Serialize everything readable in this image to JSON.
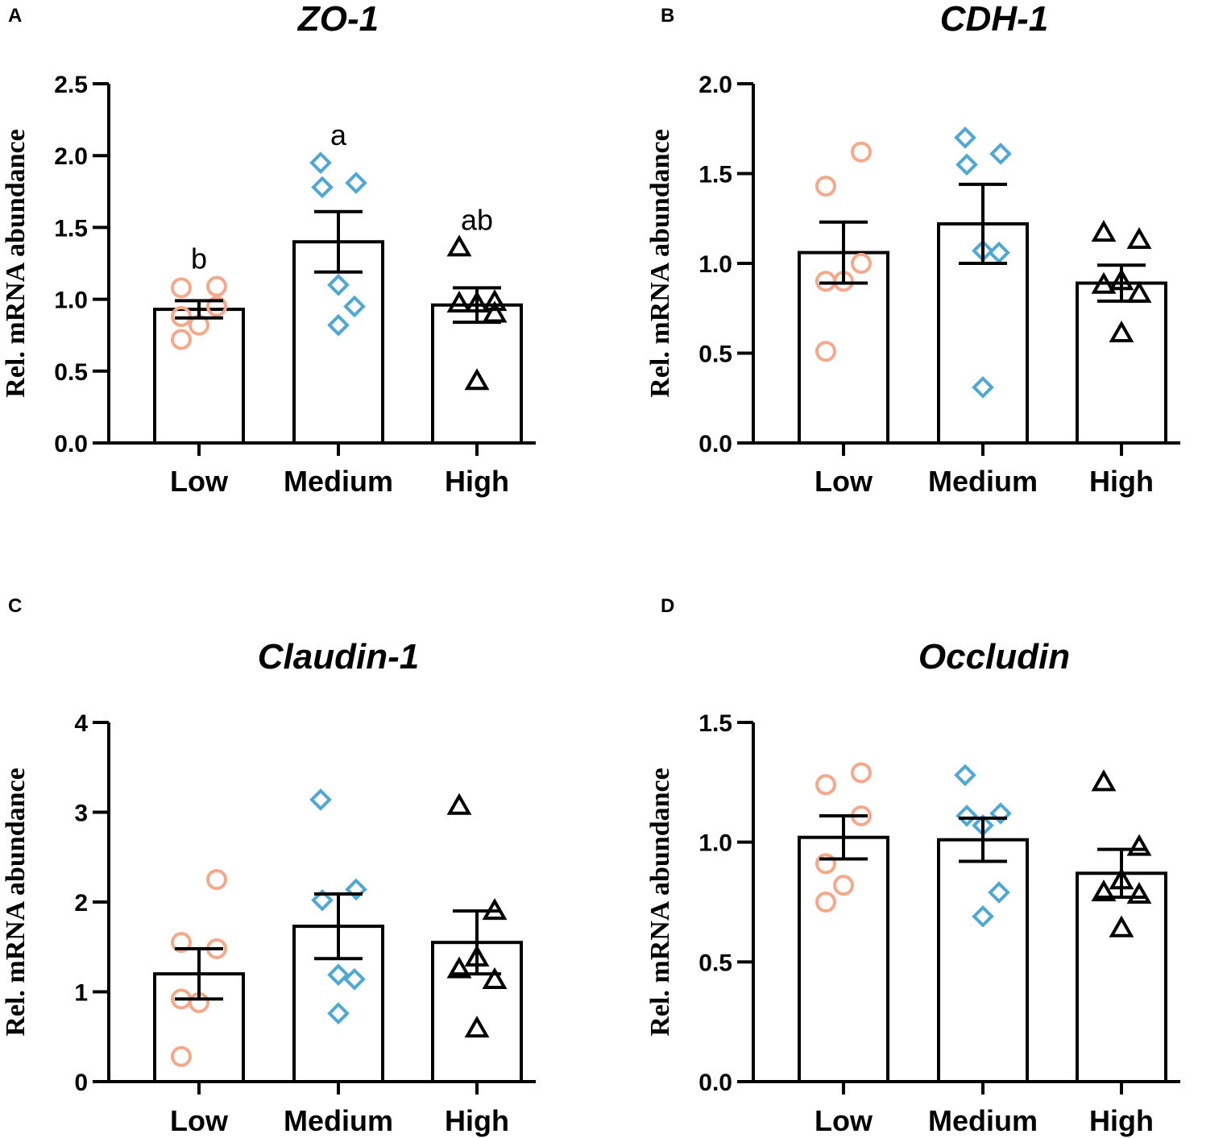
{
  "colors": {
    "low": "#f4a98a",
    "medium": "#4fa7d6",
    "high": "#000000",
    "axis": "#000000",
    "bar_fill": "#ffffff"
  },
  "chart_data": [
    {
      "panel": "A",
      "type": "bar",
      "title": "ZO-1",
      "xlabel": "",
      "ylabel": "Rel. mRNA abundance",
      "categories": [
        "Low",
        "Medium",
        "High"
      ],
      "values": [
        0.93,
        1.4,
        0.96
      ],
      "sem": [
        0.06,
        0.21,
        0.12
      ],
      "ylim": [
        0,
        2.5
      ],
      "yticks": [
        0.0,
        0.5,
        1.0,
        1.5,
        2.0,
        2.5
      ],
      "ytick_labels": [
        "0.0",
        "0.5",
        "1.0",
        "1.5",
        "2.0",
        "2.5"
      ],
      "significance": [
        "b",
        "a",
        "ab"
      ],
      "points": [
        [
          1.09,
          1.08,
          0.95,
          0.88,
          0.82,
          0.72
        ],
        [
          1.95,
          1.81,
          1.78,
          1.1,
          0.95,
          0.82
        ],
        [
          1.36,
          0.98,
          0.97,
          0.97,
          0.9,
          0.43
        ]
      ],
      "markers": [
        "circle",
        "diamond",
        "triangle"
      ]
    },
    {
      "panel": "B",
      "type": "bar",
      "title": "CDH-1",
      "xlabel": "",
      "ylabel": "Rel. mRNA abundance",
      "categories": [
        "Low",
        "Medium",
        "High"
      ],
      "values": [
        1.06,
        1.22,
        0.89
      ],
      "sem": [
        0.17,
        0.22,
        0.1
      ],
      "ylim": [
        0,
        2.0
      ],
      "yticks": [
        0.0,
        0.5,
        1.0,
        1.5,
        2.0
      ],
      "ytick_labels": [
        "0.0",
        "0.5",
        "1.0",
        "1.5",
        "2.0"
      ],
      "significance": [
        "",
        "",
        ""
      ],
      "points": [
        [
          1.62,
          1.43,
          1.0,
          0.9,
          0.9,
          0.51
        ],
        [
          1.7,
          1.61,
          1.55,
          1.07,
          1.06,
          0.31
        ],
        [
          1.17,
          1.13,
          0.9,
          0.88,
          0.83,
          0.61
        ]
      ],
      "markers": [
        "circle",
        "diamond",
        "triangle"
      ]
    },
    {
      "panel": "C",
      "type": "bar",
      "title": "Claudin-1",
      "xlabel": "",
      "ylabel": "Rel. mRNA abundance",
      "categories": [
        "Low",
        "Medium",
        "High"
      ],
      "values": [
        1.2,
        1.73,
        1.55
      ],
      "sem": [
        0.28,
        0.36,
        0.35
      ],
      "ylim": [
        0,
        4
      ],
      "yticks": [
        0,
        1,
        2,
        3,
        4
      ],
      "ytick_labels": [
        "0",
        "1",
        "2",
        "3",
        "4"
      ],
      "significance": [
        "",
        "",
        ""
      ],
      "points": [
        [
          2.25,
          1.55,
          1.48,
          0.92,
          0.88,
          0.28
        ],
        [
          3.14,
          2.14,
          2.02,
          1.19,
          1.14,
          0.76
        ],
        [
          3.07,
          1.9,
          1.38,
          1.25,
          1.13,
          0.59
        ]
      ],
      "markers": [
        "circle",
        "diamond",
        "triangle"
      ]
    },
    {
      "panel": "D",
      "type": "bar",
      "title": "Occludin",
      "xlabel": "",
      "ylabel": "Rel. mRNA abundance",
      "categories": [
        "Low",
        "Medium",
        "High"
      ],
      "values": [
        1.02,
        1.01,
        0.87
      ],
      "sem": [
        0.09,
        0.09,
        0.1
      ],
      "ylim": [
        0,
        1.5
      ],
      "yticks": [
        0.0,
        0.5,
        1.0,
        1.5
      ],
      "ytick_labels": [
        "0.0",
        "0.5",
        "1.0",
        "1.5"
      ],
      "significance": [
        "",
        "",
        ""
      ],
      "points": [
        [
          1.29,
          1.24,
          1.11,
          0.91,
          0.82,
          0.75
        ],
        [
          1.28,
          1.12,
          1.11,
          1.07,
          0.79,
          0.69
        ],
        [
          1.25,
          0.98,
          0.84,
          0.79,
          0.78,
          0.64
        ]
      ],
      "markers": [
        "circle",
        "diamond",
        "triangle"
      ]
    }
  ]
}
